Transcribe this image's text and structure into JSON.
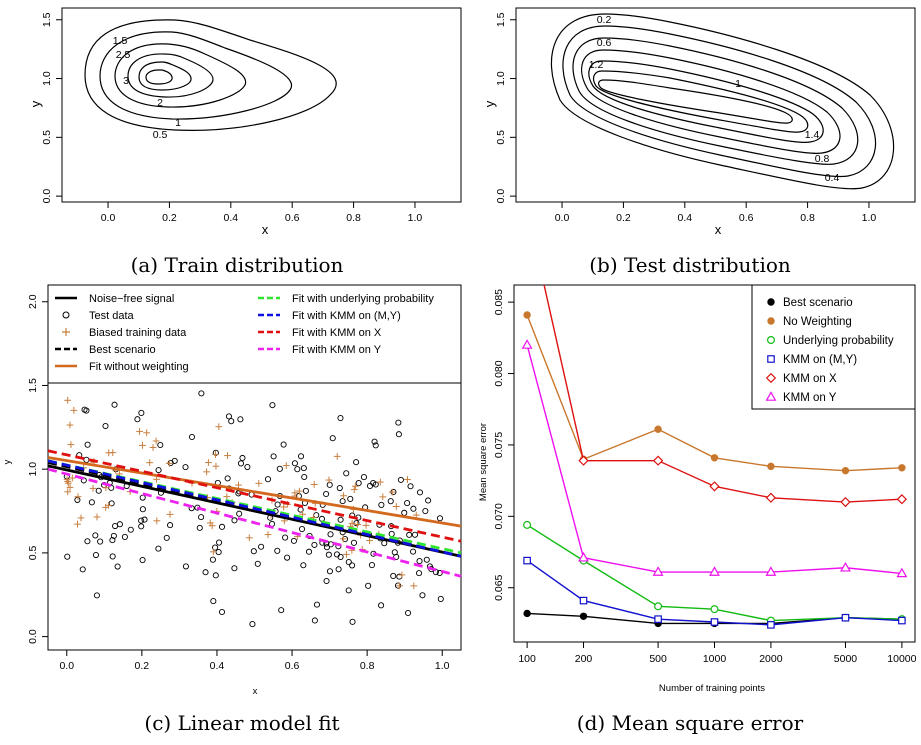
{
  "chart_data": [
    {
      "panel": "a",
      "type": "contour",
      "caption": "(a) Train distribution",
      "xlabel": "x",
      "ylabel": "y",
      "x_ticks": [
        "0.0",
        "0.2",
        "0.4",
        "0.6",
        "0.8",
        "1.0"
      ],
      "y_ticks": [
        "0.0",
        "0.5",
        "1.0",
        "1.5"
      ],
      "xlim": [
        -0.15,
        1.15
      ],
      "ylim": [
        -0.05,
        1.6
      ],
      "contour_levels": [
        "0.5",
        "1",
        "1.5",
        "2",
        "2.5",
        "3"
      ]
    },
    {
      "panel": "b",
      "type": "contour",
      "caption": "(b) Test distribution",
      "xlabel": "x",
      "ylabel": "y",
      "x_ticks": [
        "0.0",
        "0.2",
        "0.4",
        "0.6",
        "0.8",
        "1.0"
      ],
      "y_ticks": [
        "0.0",
        "0.5",
        "1.0",
        "1.5"
      ],
      "xlim": [
        -0.15,
        1.15
      ],
      "ylim": [
        -0.05,
        1.6
      ],
      "contour_levels": [
        "0.2",
        "0.4",
        "0.6",
        "0.8",
        "1",
        "1.2",
        "1.4"
      ]
    },
    {
      "panel": "c",
      "type": "scatter",
      "caption": "(c) Linear model fit",
      "xlabel": "x",
      "ylabel": "y",
      "x_ticks": [
        "0.0",
        "0.2",
        "0.4",
        "0.6",
        "0.8",
        "1.0"
      ],
      "y_ticks": [
        "0.0",
        "0.5",
        "1.0",
        "1.5",
        "2.0"
      ],
      "xlim": [
        -0.05,
        1.05
      ],
      "ylim": [
        -0.08,
        2.1
      ],
      "legend": [
        {
          "name": "Noise−free signal",
          "style": "solid",
          "color": "#000000"
        },
        {
          "name": "Test data",
          "style": "circle",
          "color": "#000000"
        },
        {
          "name": "Biased training data",
          "style": "plus",
          "color": "#c87f3f"
        },
        {
          "name": "Best scenario",
          "style": "dashed",
          "color": "#000000"
        },
        {
          "name": "Fit without weighting",
          "style": "solid",
          "color": "#d2691e"
        },
        {
          "name": "Fit with underlying probability",
          "style": "dashed",
          "color": "#2ee62e"
        },
        {
          "name": "Fit with KMM on (M,Y)",
          "style": "dashed",
          "color": "#1010e0"
        },
        {
          "name": "Fit with KMM on X",
          "style": "dashed",
          "color": "#e01010"
        },
        {
          "name": "Fit with KMM on Y",
          "style": "dashed",
          "color": "#ee22ee"
        }
      ],
      "lines": [
        {
          "name": "Noise−free signal",
          "x": [
            -0.05,
            1.05
          ],
          "y": [
            1.02,
            0.48
          ]
        },
        {
          "name": "Fit without weighting",
          "x": [
            -0.05,
            1.05
          ],
          "y": [
            1.07,
            0.66
          ]
        },
        {
          "name": "Best scenario",
          "x": [
            -0.05,
            1.05
          ],
          "y": [
            1.04,
            0.48
          ]
        },
        {
          "name": "Fit with underlying probability",
          "x": [
            -0.05,
            1.05
          ],
          "y": [
            1.05,
            0.5
          ]
        },
        {
          "name": "Fit with KMM on (M,Y)",
          "x": [
            -0.05,
            1.05
          ],
          "y": [
            1.05,
            0.48
          ]
        },
        {
          "name": "Fit with KMM on X",
          "x": [
            -0.05,
            1.05
          ],
          "y": [
            1.11,
            0.57
          ]
        },
        {
          "name": "Fit with KMM on Y",
          "x": [
            -0.05,
            1.05
          ],
          "y": [
            1.0,
            0.36
          ]
        }
      ]
    },
    {
      "panel": "d",
      "type": "line",
      "caption": "(d) Mean square error",
      "xlabel": "Number of training points",
      "ylabel": "Mean square error",
      "x_scale": "log",
      "categories": [
        "100",
        "200",
        "500",
        "1000",
        "2000",
        "5000",
        "10000"
      ],
      "x": [
        100,
        200,
        500,
        1000,
        2000,
        5000,
        10000
      ],
      "y_ticks": [
        "0.065",
        "0.070",
        "0.075",
        "0.080",
        "0.085"
      ],
      "ylim": [
        0.0612,
        0.0862
      ],
      "legend_position": "top-right",
      "series": [
        {
          "name": "Best scenario",
          "color": "#000000",
          "marker": "filled-circle",
          "values": [
            0.0632,
            0.063,
            0.0625,
            0.0625,
            0.0625,
            0.0629,
            0.0628
          ]
        },
        {
          "name": "No Weighting",
          "color": "#c8782d",
          "marker": "filled-circle",
          "values": [
            0.0841,
            0.074,
            0.0761,
            0.0741,
            0.0735,
            0.0732,
            0.0734
          ]
        },
        {
          "name": "Underlying probability",
          "color": "#11bb11",
          "marker": "open-circle",
          "values": [
            0.0694,
            0.0669,
            0.0637,
            0.0635,
            0.0627,
            0.0629,
            0.0628
          ]
        },
        {
          "name": "KMM on (M,Y)",
          "color": "#1111cc",
          "marker": "open-square",
          "values": [
            0.0669,
            0.0641,
            0.0628,
            0.0626,
            0.0624,
            0.0629,
            0.0627
          ]
        },
        {
          "name": "KMM on X",
          "color": "#dd1111",
          "marker": "open-diamond",
          "values": [
            0.0915,
            0.0739,
            0.0739,
            0.0721,
            0.0713,
            0.071,
            0.0712
          ]
        },
        {
          "name": "KMM on Y",
          "color": "#ee11ee",
          "marker": "open-triangle",
          "values": [
            0.082,
            0.0671,
            0.0661,
            0.0661,
            0.0661,
            0.0664,
            0.066
          ]
        }
      ]
    }
  ]
}
